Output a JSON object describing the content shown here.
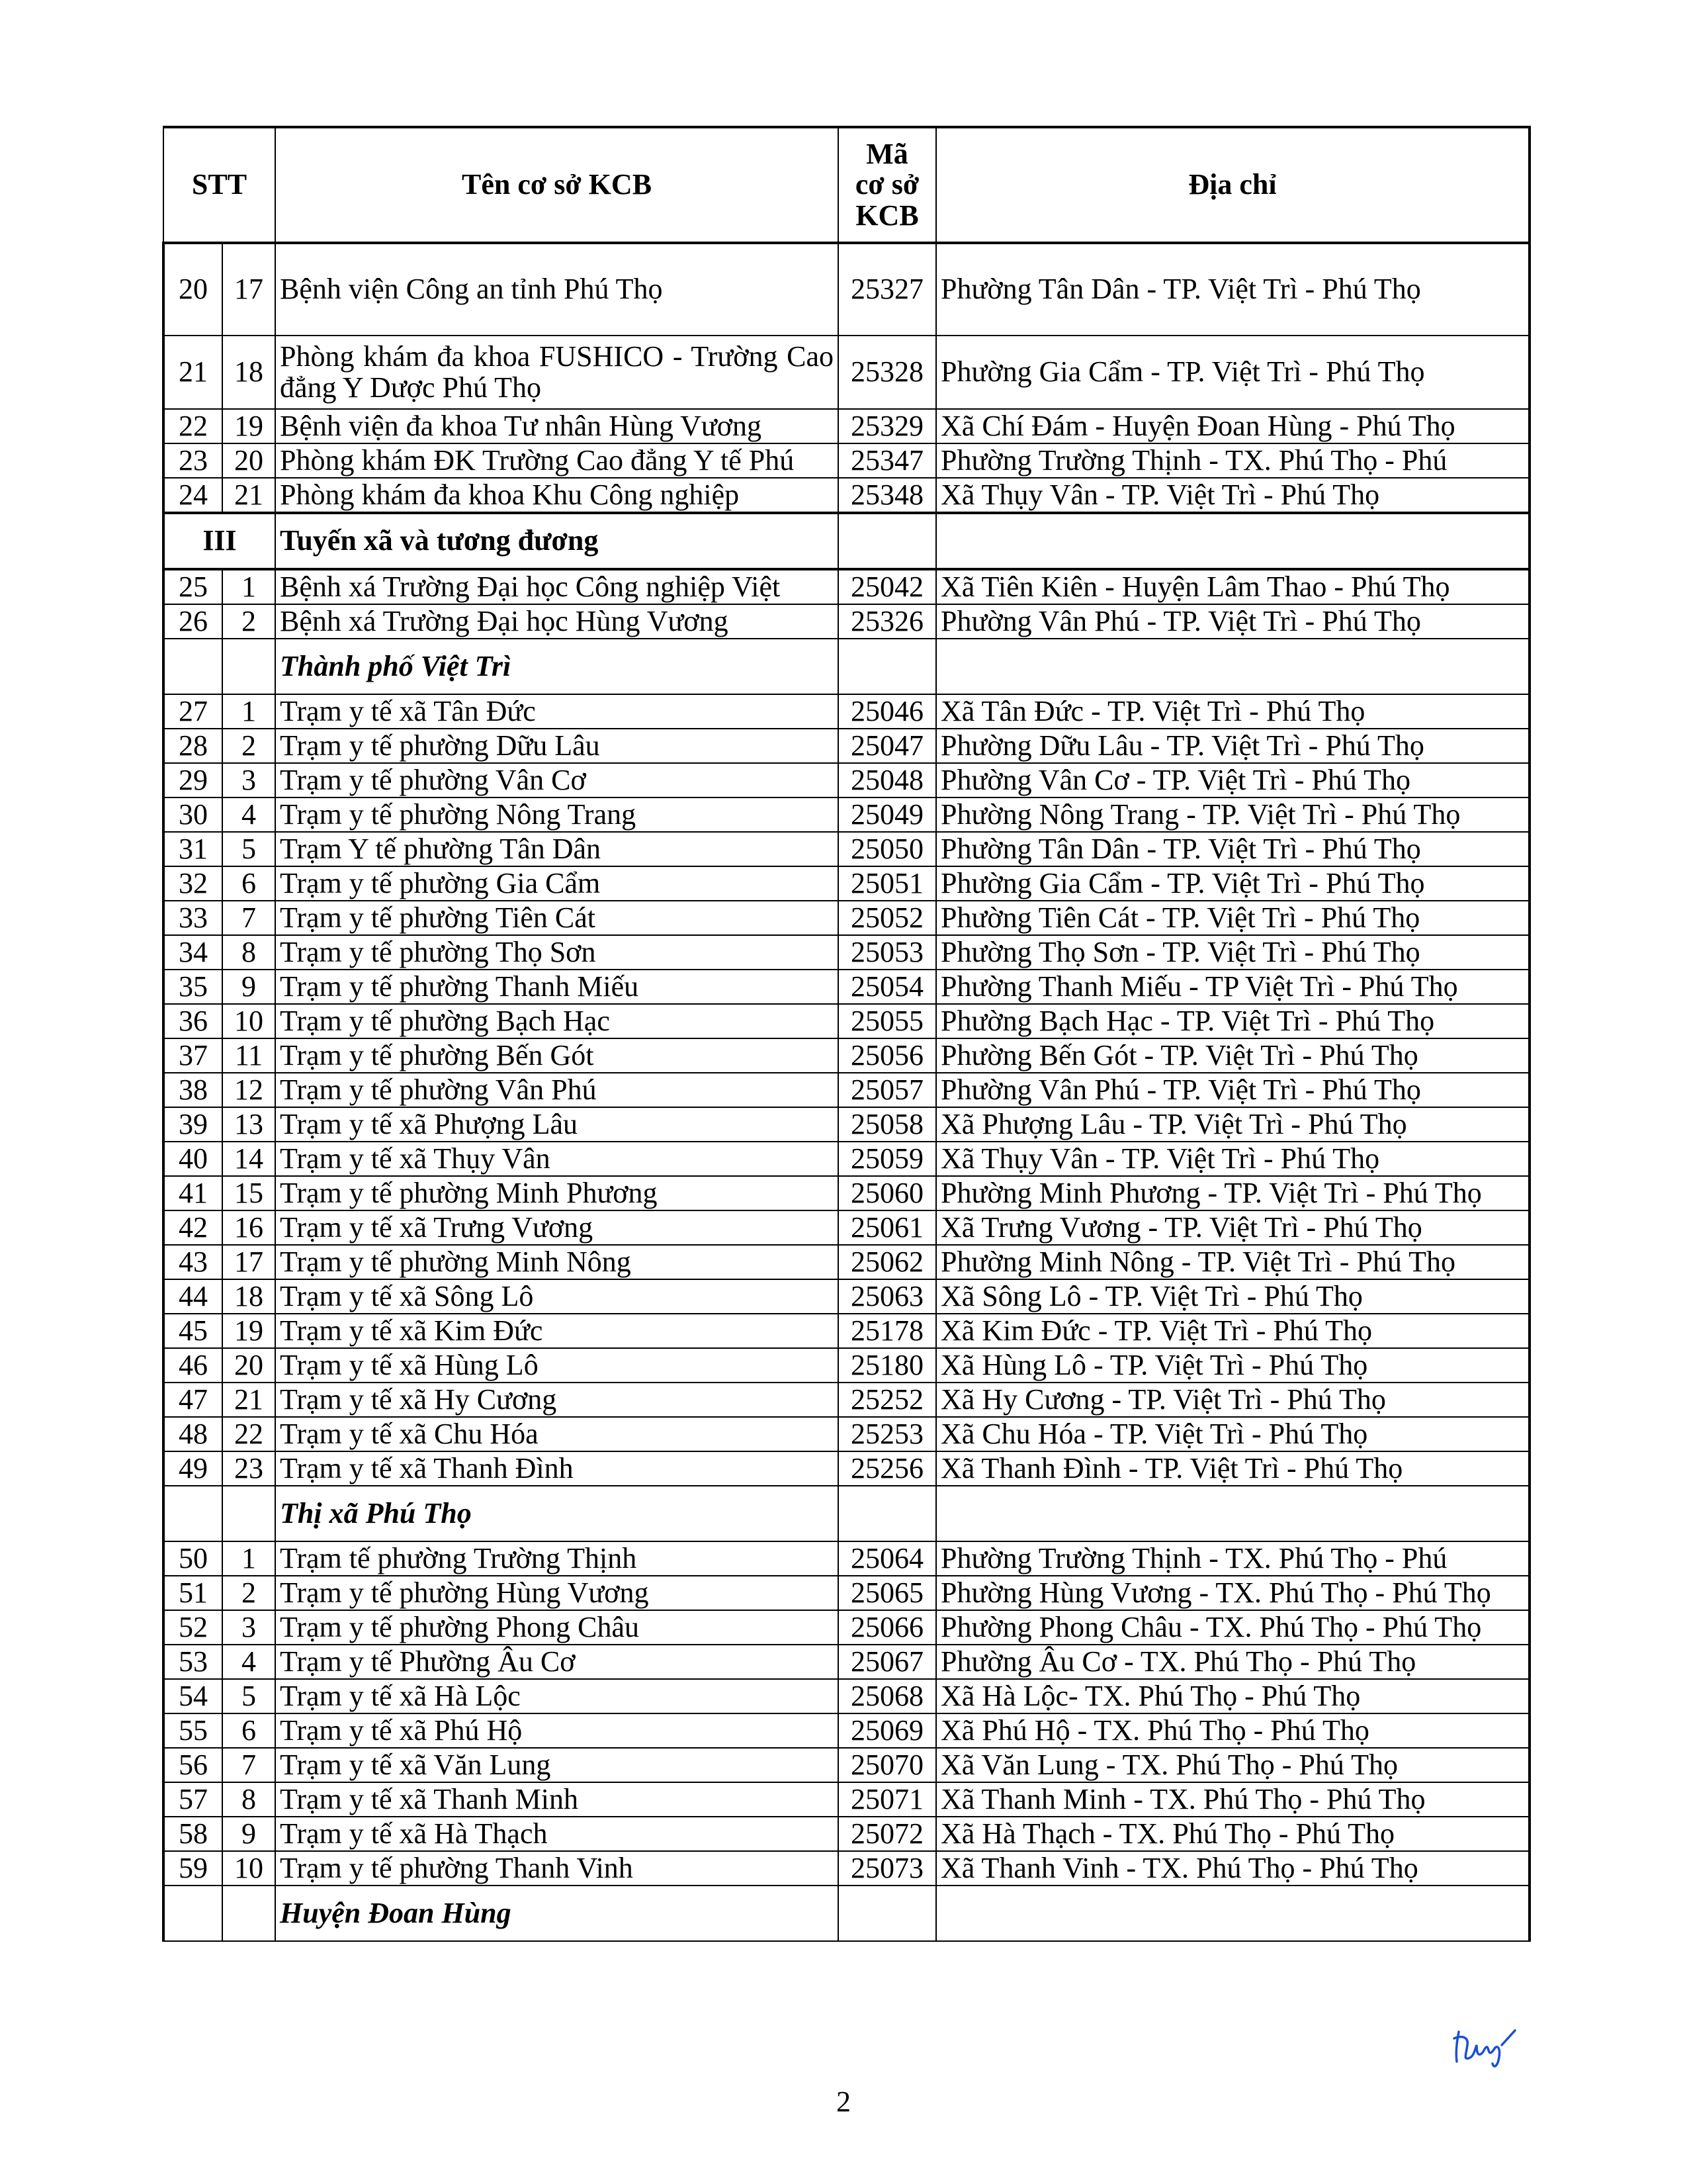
{
  "header": {
    "stt": "STT",
    "name": "Tên cơ sở KCB",
    "code_l1": "Mã",
    "code_l2": "cơ sở",
    "code_l3": "KCB",
    "address": "Địa chỉ"
  },
  "rows": [
    {
      "type": "row",
      "stt": "20",
      "sub": "17",
      "name": "Bệnh viện Công an tỉnh Phú Thọ",
      "code": "25327",
      "address": "Phường Tân Dân - TP. Việt Trì - Phú Thọ",
      "h": 137
    },
    {
      "type": "row",
      "stt": "21",
      "sub": "18",
      "name": "Phòng khám đa khoa FUSHICO - Trường Cao đẳng Y Dược Phú Thọ",
      "code": "25328",
      "address": "Phường Gia Cẩm - TP. Việt Trì - Phú Thọ",
      "h": 109,
      "wrap": true
    },
    {
      "type": "row",
      "stt": "22",
      "sub": "19",
      "name": "Bệnh viện đa khoa Tư nhân Hùng Vương",
      "code": "25329",
      "address": "Xã Chí Đám - Huyện Đoan Hùng - Phú Thọ"
    },
    {
      "type": "row",
      "stt": "23",
      "sub": "20",
      "name": "Phòng khám ĐK Trường Cao đẳng Y tế Phú",
      "code": "25347",
      "address": "Phường Trường Thịnh - TX. Phú Thọ - Phú"
    },
    {
      "type": "row",
      "stt": "24",
      "sub": "21",
      "name": "Phòng khám đa khoa Khu Công nghiệp",
      "code": "25348",
      "address": "Xã Thụy Vân - TP. Việt Trì - Phú Thọ"
    },
    {
      "type": "tier",
      "stt": "III",
      "name": "Tuyến xã và tương đương"
    },
    {
      "type": "row",
      "stt": "25",
      "sub": "1",
      "name": "Bệnh xá Trường Đại học Công nghiệp Việt",
      "code": "25042",
      "address": "Xã Tiên Kiên - Huyện Lâm Thao - Phú Thọ"
    },
    {
      "type": "row",
      "stt": "26",
      "sub": "2",
      "name": "Bệnh xá Trường Đại học Hùng Vương",
      "code": "25326",
      "address": "Phường Vân Phú - TP. Việt Trì - Phú Thọ"
    },
    {
      "type": "section",
      "name": "Thành phố Việt Trì"
    },
    {
      "type": "row",
      "stt": "27",
      "sub": "1",
      "name": "Trạm y tế xã Tân Đức",
      "code": "25046",
      "address": "Xã Tân Đức - TP. Việt Trì - Phú Thọ"
    },
    {
      "type": "row",
      "stt": "28",
      "sub": "2",
      "name": "Trạm y tế phường Dữu Lâu",
      "code": "25047",
      "address": "Phường Dữu Lâu - TP. Việt Trì - Phú Thọ"
    },
    {
      "type": "row",
      "stt": "29",
      "sub": "3",
      "name": "Trạm y tế phường Vân Cơ",
      "code": "25048",
      "address": "Phường Vân Cơ - TP. Việt Trì - Phú Thọ"
    },
    {
      "type": "row",
      "stt": "30",
      "sub": "4",
      "name": "Trạm y tế phường Nông Trang",
      "code": "25049",
      "address": "Phường Nông Trang  - TP. Việt Trì - Phú Thọ"
    },
    {
      "type": "row",
      "stt": "31",
      "sub": "5",
      "name": "Trạm Y tế phường Tân Dân",
      "code": "25050",
      "address": "Phường Tân Dân - TP. Việt Trì - Phú Thọ"
    },
    {
      "type": "row",
      "stt": "32",
      "sub": "6",
      "name": "Trạm y tế phường Gia Cẩm",
      "code": "25051",
      "address": "Phường Gia Cẩm - TP. Việt Trì - Phú Thọ"
    },
    {
      "type": "row",
      "stt": "33",
      "sub": "7",
      "name": "Trạm y tế phường Tiên Cát",
      "code": "25052",
      "address": "Phường Tiên Cát - TP. Việt Trì - Phú Thọ"
    },
    {
      "type": "row",
      "stt": "34",
      "sub": "8",
      "name": "Trạm y tế phường Thọ Sơn",
      "code": "25053",
      "address": "Phường Thọ Sơn - TP. Việt Trì - Phú Thọ"
    },
    {
      "type": "row",
      "stt": "35",
      "sub": "9",
      "name": "Trạm y tế phường Thanh Miếu",
      "code": "25054",
      "address": "Phường Thanh Miếu  - TP Việt Trì - Phú Thọ"
    },
    {
      "type": "row",
      "stt": "36",
      "sub": "10",
      "name": "Trạm y tế phường Bạch Hạc",
      "code": "25055",
      "address": "Phường Bạch Hạc - TP. Việt Trì - Phú Thọ"
    },
    {
      "type": "row",
      "stt": "37",
      "sub": "11",
      "name": "Trạm y tế phường Bến Gót",
      "code": "25056",
      "address": "Phường Bến Gót  - TP. Việt Trì - Phú Thọ"
    },
    {
      "type": "row",
      "stt": "38",
      "sub": "12",
      "name": "Trạm y tế phường Vân Phú",
      "code": "25057",
      "address": "Phường Vân Phú - TP. Việt Trì - Phú Thọ"
    },
    {
      "type": "row",
      "stt": "39",
      "sub": "13",
      "name": "Trạm y tế xã Phượng Lâu",
      "code": "25058",
      "address": "Xã Phượng Lâu - TP. Việt Trì - Phú Thọ"
    },
    {
      "type": "row",
      "stt": "40",
      "sub": "14",
      "name": "Trạm y tế xã Thụy Vân",
      "code": "25059",
      "address": "Xã Thụy Vân - TP. Việt Trì - Phú Thọ"
    },
    {
      "type": "row",
      "stt": "41",
      "sub": "15",
      "name": "Trạm y tế phường Minh Phương",
      "code": "25060",
      "address": "Phường Minh Phương - TP. Việt Trì - Phú Thọ"
    },
    {
      "type": "row",
      "stt": "42",
      "sub": "16",
      "name": "Trạm y tế xã Trưng Vương",
      "code": "25061",
      "address": "Xã Trưng Vương - TP. Việt Trì - Phú Thọ"
    },
    {
      "type": "row",
      "stt": "43",
      "sub": "17",
      "name": "Trạm y tế phường Minh Nông",
      "code": "25062",
      "address": "Phường Minh Nông  - TP. Việt Trì - Phú Thọ"
    },
    {
      "type": "row",
      "stt": "44",
      "sub": "18",
      "name": "Trạm y tế xã Sông Lô",
      "code": "25063",
      "address": "Xã Sông Lô - TP. Việt Trì - Phú Thọ"
    },
    {
      "type": "row",
      "stt": "45",
      "sub": "19",
      "name": "Trạm y tế xã Kim Đức",
      "code": "25178",
      "address": "Xã Kim Đức  - TP. Việt Trì - Phú Thọ"
    },
    {
      "type": "row",
      "stt": "46",
      "sub": "20",
      "name": "Trạm y tế xã Hùng Lô",
      "code": "25180",
      "address": "Xã Hùng Lô - TP. Việt Trì - Phú Thọ"
    },
    {
      "type": "row",
      "stt": "47",
      "sub": "21",
      "name": "Trạm y tế xã Hy Cương",
      "code": "25252",
      "address": "Xã Hy Cương - TP. Việt Trì - Phú Thọ"
    },
    {
      "type": "row",
      "stt": "48",
      "sub": "22",
      "name": "Trạm y tế xã Chu Hóa",
      "code": "25253",
      "address": "Xã Chu Hóa  - TP. Việt Trì - Phú Thọ"
    },
    {
      "type": "row",
      "stt": "49",
      "sub": "23",
      "name": "Trạm y tế xã Thanh Đình",
      "code": "25256",
      "address": "Xã Thanh Đình  - TP. Việt Trì - Phú Thọ"
    },
    {
      "type": "section",
      "name": "Thị xã Phú Thọ"
    },
    {
      "type": "row",
      "stt": "50",
      "sub": "1",
      "name": "Trạm  tế phường Trường Thịnh",
      "code": "25064",
      "address": "Phường Trường Thịnh - TX. Phú Thọ - Phú"
    },
    {
      "type": "row",
      "stt": "51",
      "sub": "2",
      "name": "Trạm y tế  phường Hùng Vương",
      "code": "25065",
      "address": "Phường Hùng Vương - TX. Phú Thọ - Phú Thọ"
    },
    {
      "type": "row",
      "stt": "52",
      "sub": "3",
      "name": "Trạm y tế phường Phong Châu",
      "code": "25066",
      "address": "Phường Phong Châu - TX. Phú Thọ - Phú Thọ"
    },
    {
      "type": "row",
      "stt": "53",
      "sub": "4",
      "name": "Trạm y tế Phường Âu Cơ",
      "code": "25067",
      "address": "Phường Âu Cơ - TX. Phú Thọ - Phú Thọ"
    },
    {
      "type": "row",
      "stt": "54",
      "sub": "5",
      "name": "Trạm y tế xã Hà Lộc",
      "code": "25068",
      "address": "Xã Hà Lộc- TX. Phú Thọ - Phú Thọ"
    },
    {
      "type": "row",
      "stt": "55",
      "sub": "6",
      "name": "Trạm y tế xã Phú Hộ",
      "code": "25069",
      "address": "Xã Phú Hộ - TX. Phú Thọ - Phú Thọ"
    },
    {
      "type": "row",
      "stt": "56",
      "sub": "7",
      "name": "Trạm y tế xã Văn Lung",
      "code": "25070",
      "address": "Xã Văn Lung - TX. Phú Thọ - Phú Thọ"
    },
    {
      "type": "row",
      "stt": "57",
      "sub": "8",
      "name": "Trạm y tế xã Thanh Minh",
      "code": "25071",
      "address": "Xã Thanh Minh - TX. Phú Thọ - Phú Thọ"
    },
    {
      "type": "row",
      "stt": "58",
      "sub": "9",
      "name": "Trạm y tế xã Hà Thạch",
      "code": "25072",
      "address": "Xã Hà Thạch - TX. Phú Thọ - Phú Thọ"
    },
    {
      "type": "row",
      "stt": "59",
      "sub": "10",
      "name": "Trạm y tế phường Thanh Vinh",
      "code": "25073",
      "address": "Xã Thanh Vinh - TX. Phú Thọ - Phú Thọ"
    },
    {
      "type": "section",
      "name": "Huyện Đoan Hùng"
    }
  ],
  "page_number": "2",
  "signature": {
    "text": "Hùng",
    "color": "#1a4fd6"
  }
}
